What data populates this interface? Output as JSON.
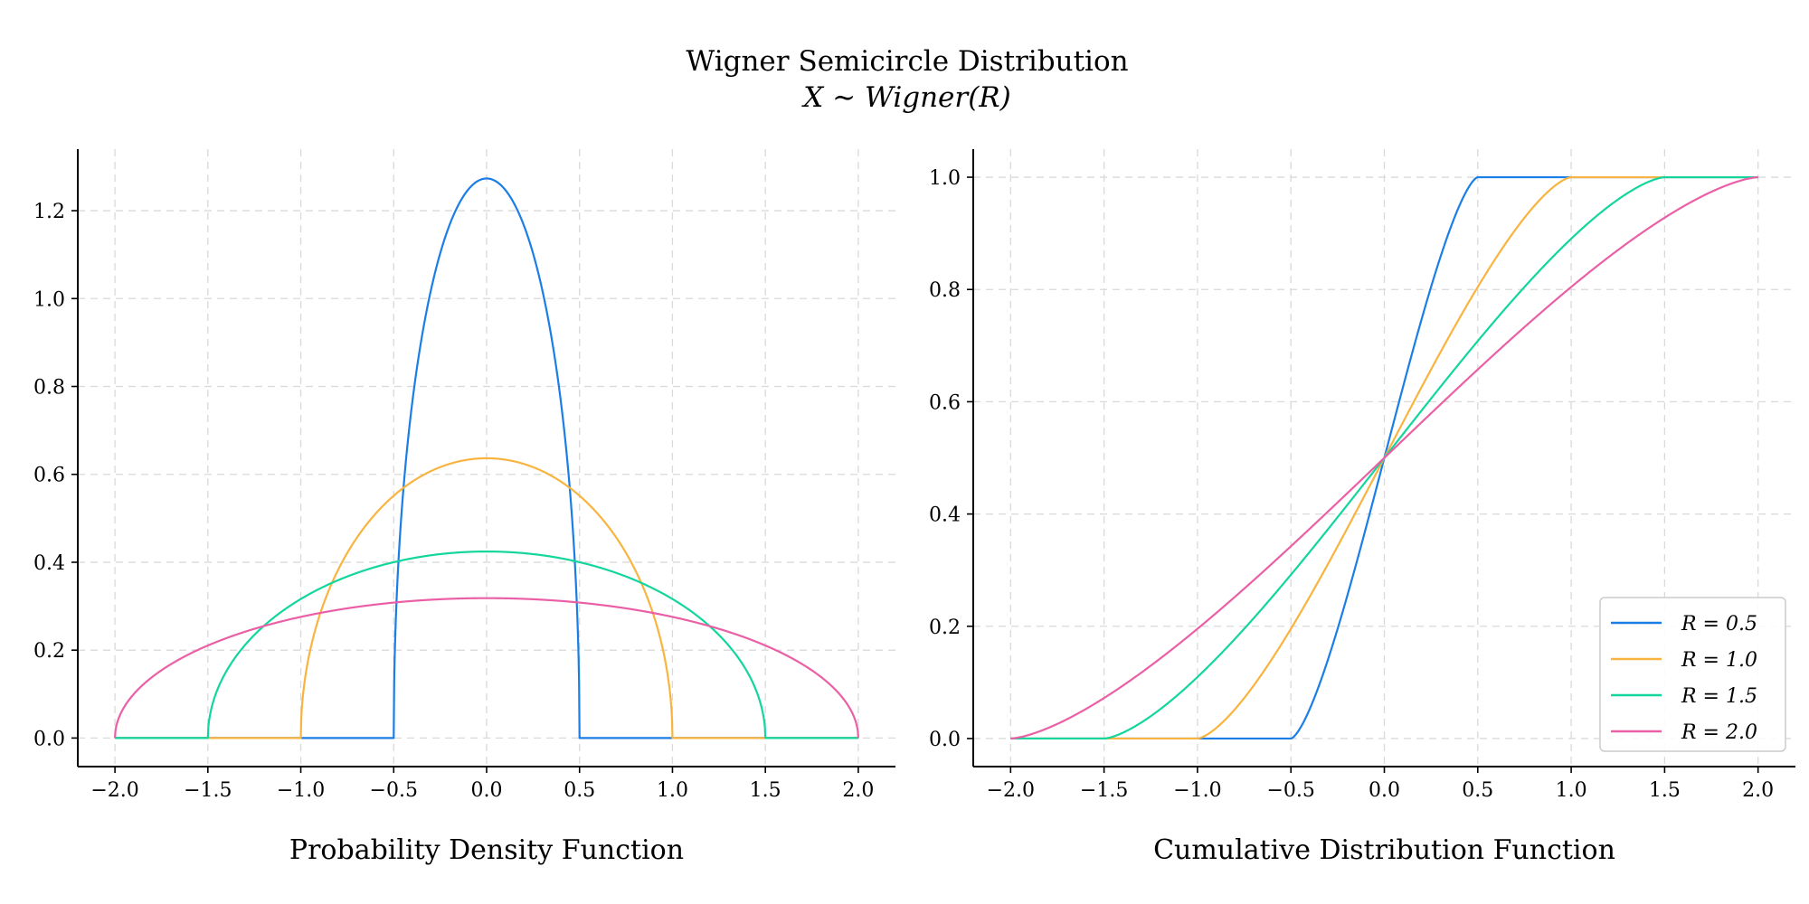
{
  "figure": {
    "title": "Wigner Semicircle Distribution",
    "subtitle": "X ∼ Wigner(R)"
  },
  "chart_data": [
    {
      "type": "line",
      "name": "pdf",
      "xlabel": "Probability Density Function",
      "ylabel": "",
      "xlim": [
        -2.2,
        2.2
      ],
      "ylim": [
        -0.065,
        1.34
      ],
      "xticks": [
        -2.0,
        -1.5,
        -1.0,
        -0.5,
        0.0,
        0.5,
        1.0,
        1.5,
        2.0
      ],
      "xtick_labels": [
        "−2.0",
        "−1.5",
        "−1.0",
        "−0.5",
        "0.0",
        "0.5",
        "1.0",
        "1.5",
        "2.0"
      ],
      "yticks": [
        0.0,
        0.2,
        0.4,
        0.6,
        0.8,
        1.0,
        1.2
      ],
      "ytick_labels": [
        "0.0",
        "0.2",
        "0.4",
        "0.6",
        "0.8",
        "1.0",
        "1.2"
      ],
      "grid": true,
      "function": "wigner_pdf",
      "x_domain": [
        -2.0,
        2.0
      ],
      "series": [
        {
          "label": "R = 0.5",
          "R": 0.5,
          "color": "#1a7ee6"
        },
        {
          "label": "R = 1.0",
          "R": 1.0,
          "color": "#f9b440"
        },
        {
          "label": "R = 1.5",
          "R": 1.5,
          "color": "#13d69d"
        },
        {
          "label": "R = 2.0",
          "R": 2.0,
          "color": "#ea5fa5"
        }
      ]
    },
    {
      "type": "line",
      "name": "cdf",
      "xlabel": "Cumulative Distribution Function",
      "ylabel": "",
      "xlim": [
        -2.2,
        2.2
      ],
      "ylim": [
        -0.05,
        1.05
      ],
      "xticks": [
        -2.0,
        -1.5,
        -1.0,
        -0.5,
        0.0,
        0.5,
        1.0,
        1.5,
        2.0
      ],
      "xtick_labels": [
        "−2.0",
        "−1.5",
        "−1.0",
        "−0.5",
        "0.0",
        "0.5",
        "1.0",
        "1.5",
        "2.0"
      ],
      "yticks": [
        0.0,
        0.2,
        0.4,
        0.6,
        0.8,
        1.0
      ],
      "ytick_labels": [
        "0.0",
        "0.2",
        "0.4",
        "0.6",
        "0.8",
        "1.0"
      ],
      "grid": true,
      "function": "wigner_cdf",
      "x_domain": [
        -2.0,
        2.0
      ],
      "legend": {
        "placement": "bottom-right"
      },
      "series": [
        {
          "label": "R = 0.5",
          "R": 0.5,
          "color": "#1a7ee6"
        },
        {
          "label": "R = 1.0",
          "R": 1.0,
          "color": "#f9b440"
        },
        {
          "label": "R = 1.5",
          "R": 1.5,
          "color": "#13d69d"
        },
        {
          "label": "R = 2.0",
          "R": 2.0,
          "color": "#ea5fa5"
        }
      ]
    }
  ]
}
